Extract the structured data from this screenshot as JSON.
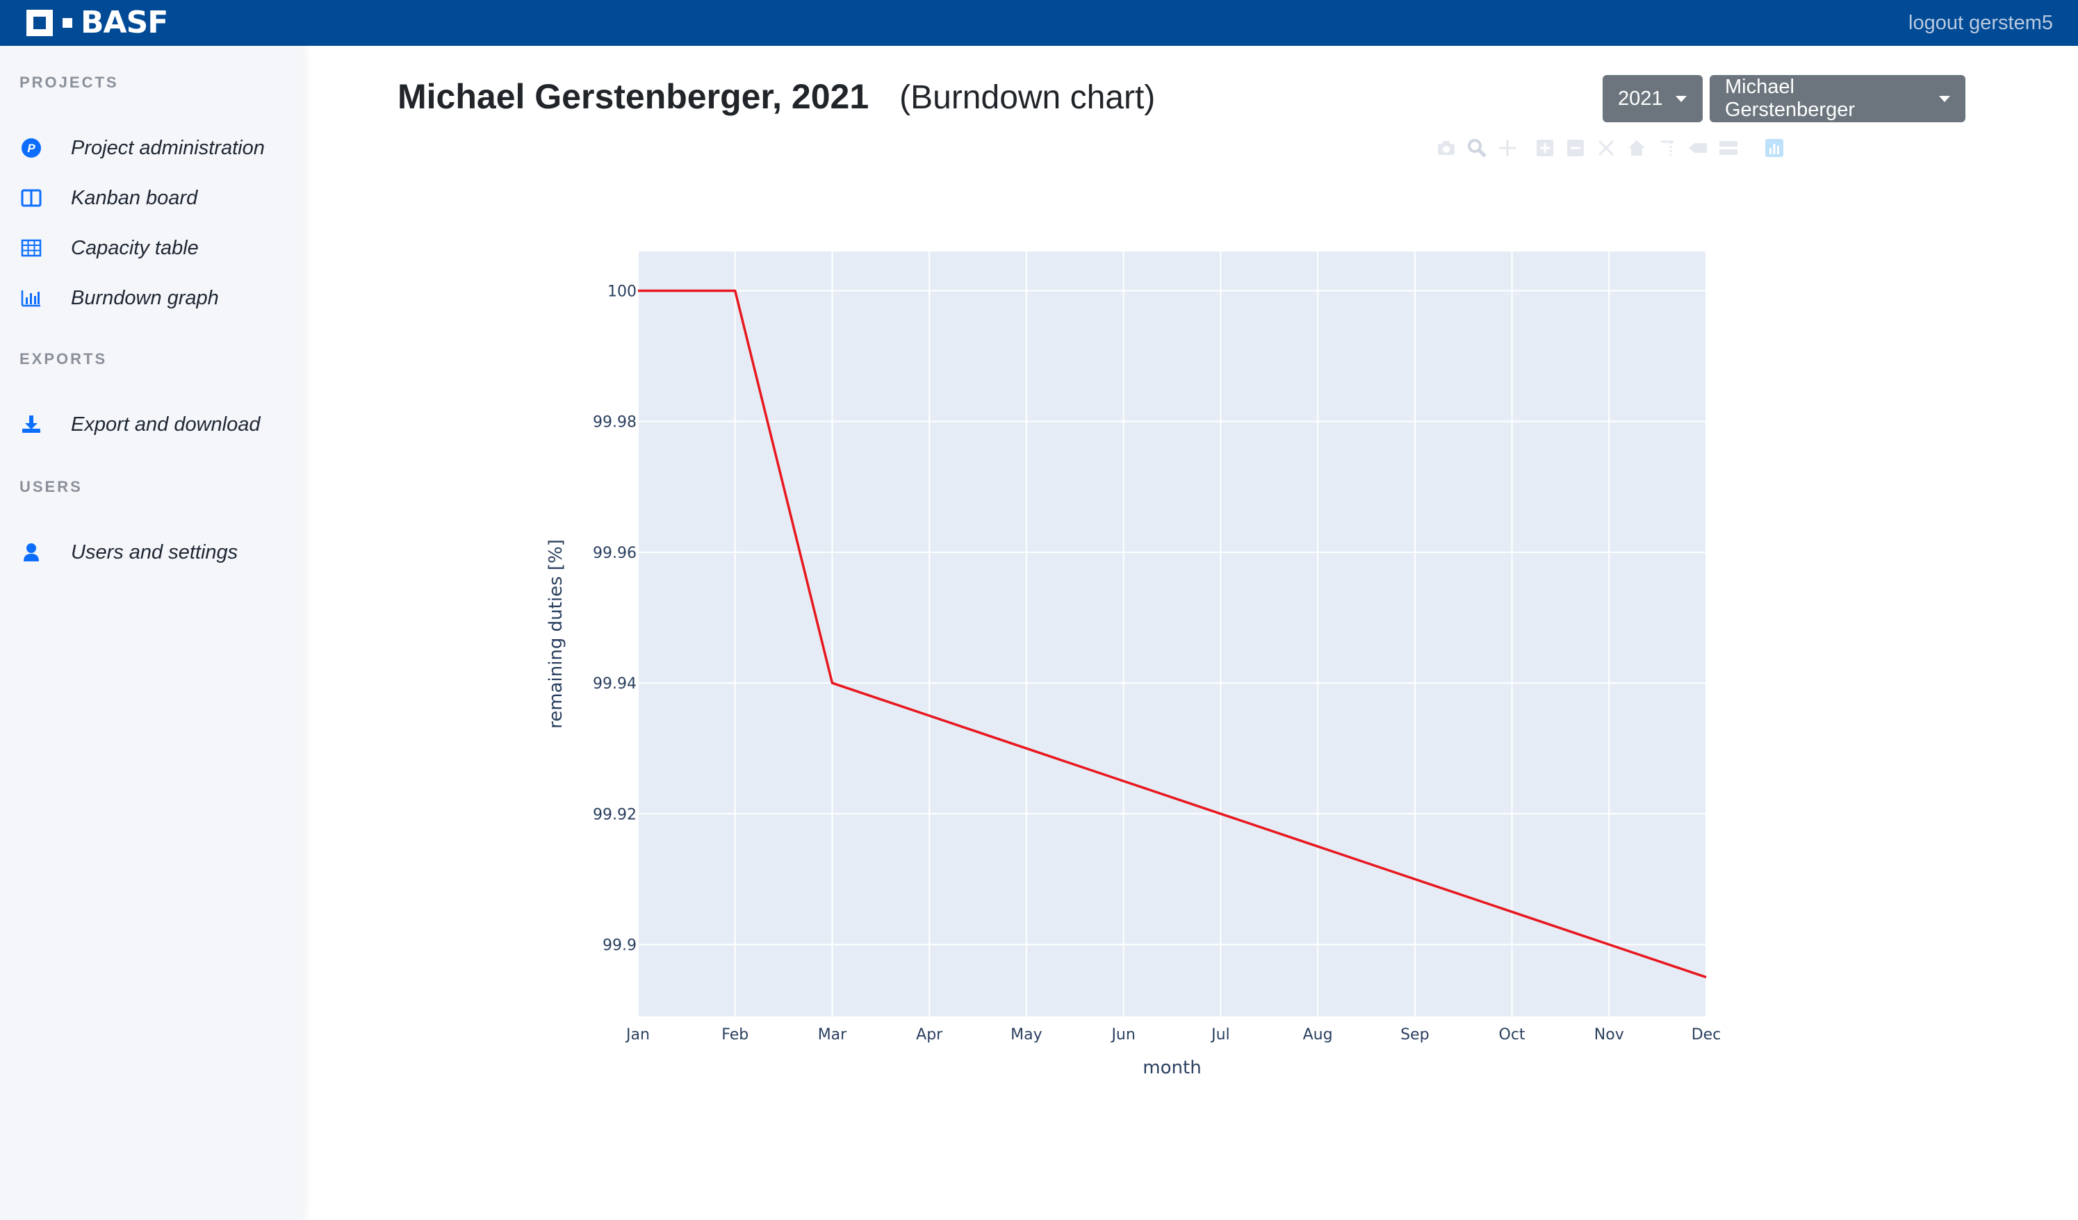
{
  "header": {
    "brand": "BASF",
    "logout_label": "logout gerstem5"
  },
  "sidebar": {
    "sections": [
      {
        "heading": "PROJECTS",
        "items": [
          {
            "label": "Project administration",
            "icon": "project-p-icon"
          },
          {
            "label": "Kanban board",
            "icon": "kanban-columns-icon"
          },
          {
            "label": "Capacity table",
            "icon": "table-grid-icon"
          },
          {
            "label": "Burndown graph",
            "icon": "bar-chart-icon"
          }
        ]
      },
      {
        "heading": "EXPORTS",
        "items": [
          {
            "label": "Export and download",
            "icon": "download-icon"
          }
        ]
      },
      {
        "heading": "USERS",
        "items": [
          {
            "label": "Users and settings",
            "icon": "user-icon"
          }
        ]
      }
    ]
  },
  "main": {
    "title": "Michael Gerstenberger, 2021",
    "subtitle": "(Burndown chart)",
    "year_dropdown": "2021",
    "user_dropdown": "Michael Gerstenberger"
  },
  "colors": {
    "topbar": "#004a96",
    "sidebar": "#f4f6fa",
    "plot_bg": "#e5ecf6",
    "line": "#e8171e",
    "button": "#6c757d"
  },
  "modebar_icons": [
    "camera-icon",
    "zoom-icon",
    "pan-icon",
    "zoom-in-icon",
    "zoom-out-icon",
    "autoscale-icon",
    "reset-axes-icon",
    "spike-lines-icon",
    "hover-closest-icon",
    "hover-compare-icon",
    "plotly-logo-icon"
  ],
  "chart_data": {
    "type": "line",
    "title": "",
    "xlabel": "month",
    "ylabel": "remaining duties [%]",
    "x": [
      "Jan",
      "Feb",
      "Mar",
      "Apr",
      "May",
      "Jun",
      "Jul",
      "Aug",
      "Sep",
      "Oct",
      "Nov",
      "Dec"
    ],
    "series": [
      {
        "values": [
          100,
          100,
          99.94,
          99.935,
          99.93,
          99.925,
          99.92,
          99.915,
          99.91,
          99.905,
          99.9,
          99.895
        ]
      }
    ],
    "yticks": [
      "99.9",
      "99.92",
      "99.94",
      "99.96",
      "99.98",
      "100"
    ],
    "ytick_values": [
      99.9,
      99.92,
      99.94,
      99.96,
      99.98,
      100
    ],
    "ylim": [
      99.889,
      100.006
    ],
    "grid": true,
    "line_color": "#e8171e"
  }
}
